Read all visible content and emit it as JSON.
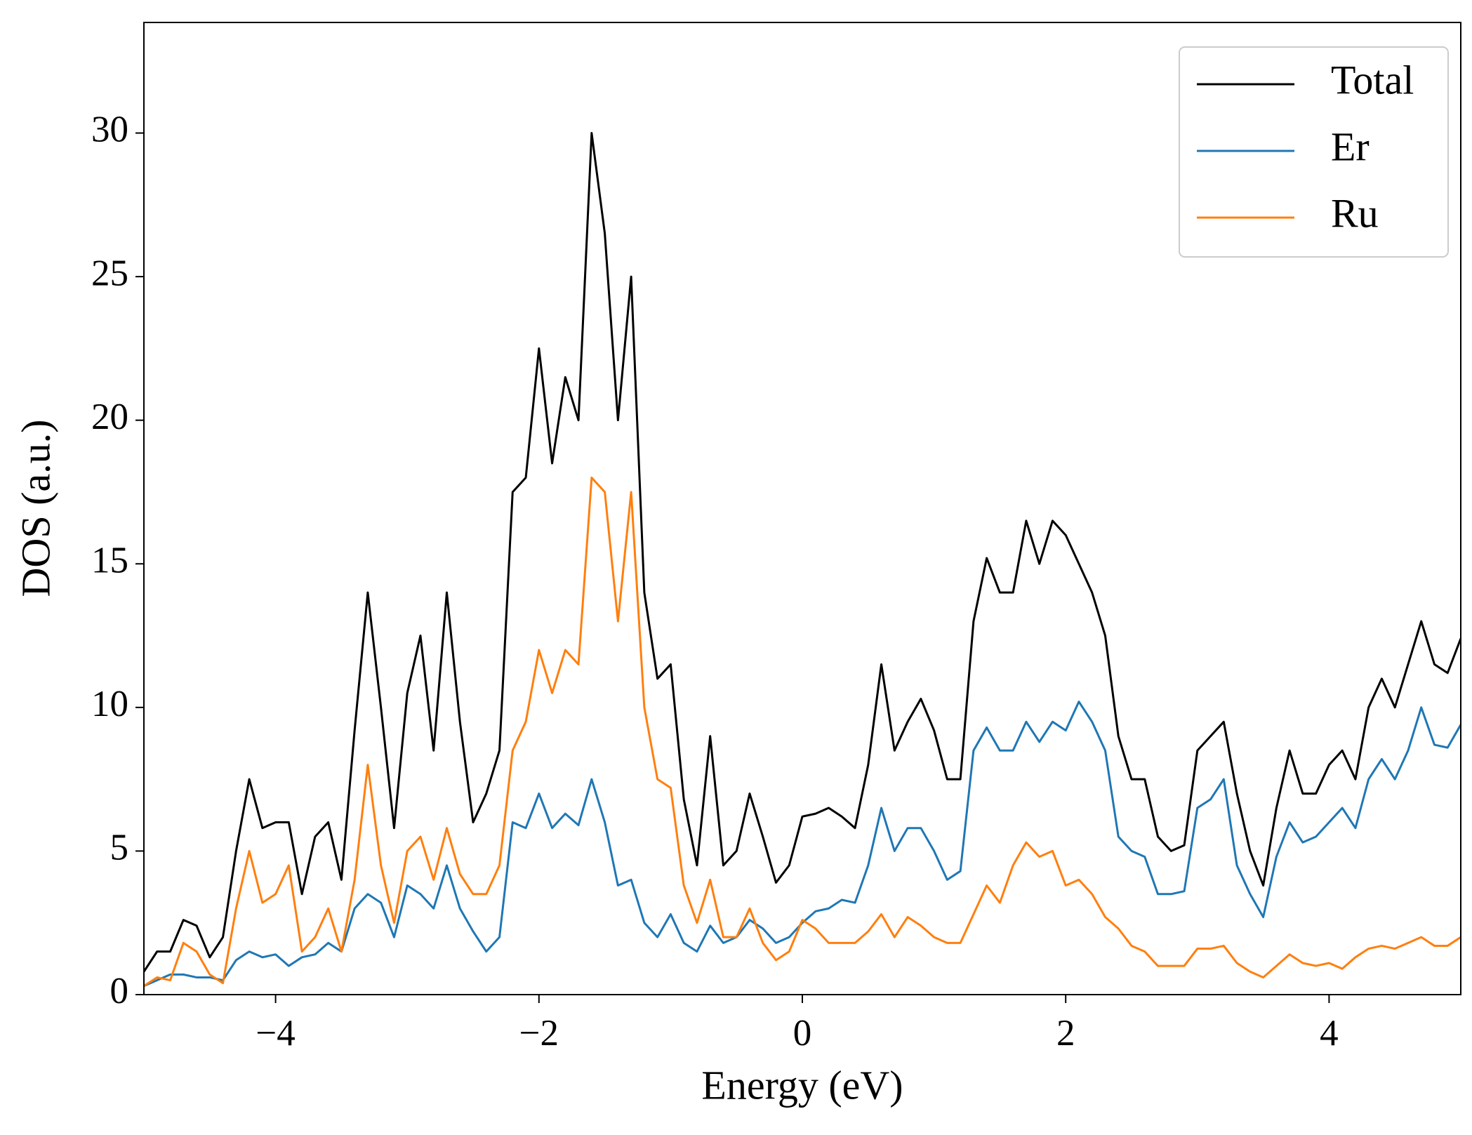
{
  "chart_data": {
    "type": "line",
    "xlabel": "Energy (eV)",
    "ylabel": "DOS (a.u.)",
    "xlim": [
      -5,
      5
    ],
    "ylim": [
      0,
      33.85
    ],
    "xticks": [
      {
        "value": -4,
        "label": "−4"
      },
      {
        "value": -2,
        "label": "−2"
      },
      0,
      2,
      4
    ],
    "yticks": [
      0,
      5,
      10,
      15,
      20,
      25,
      30
    ],
    "legend": "upper right",
    "grid": false,
    "x": [
      -5.0,
      -4.9,
      -4.8,
      -4.7,
      -4.6,
      -4.5,
      -4.4,
      -4.3,
      -4.2,
      -4.1,
      -4.0,
      -3.9,
      -3.8,
      -3.7,
      -3.6,
      -3.5,
      -3.4,
      -3.3,
      -3.2,
      -3.1,
      -3.0,
      -2.9,
      -2.8,
      -2.7,
      -2.6,
      -2.5,
      -2.4,
      -2.3,
      -2.2,
      -2.1,
      -2.0,
      -1.9,
      -1.8,
      -1.7,
      -1.6,
      -1.5,
      -1.4,
      -1.3,
      -1.2,
      -1.1,
      -1.0,
      -0.9,
      -0.8,
      -0.7,
      -0.6,
      -0.5,
      -0.4,
      -0.3,
      -0.2,
      -0.1,
      0.0,
      0.1,
      0.2,
      0.3,
      0.4,
      0.5,
      0.6,
      0.7,
      0.8,
      0.9,
      1.0,
      1.1,
      1.2,
      1.3,
      1.4,
      1.5,
      1.6,
      1.7,
      1.8,
      1.9,
      2.0,
      2.1,
      2.2,
      2.3,
      2.4,
      2.5,
      2.6,
      2.7,
      2.8,
      2.9,
      3.0,
      3.1,
      3.2,
      3.3,
      3.4,
      3.5,
      3.6,
      3.7,
      3.8,
      3.9,
      4.0,
      4.1,
      4.2,
      4.3,
      4.4,
      4.5,
      4.6,
      4.7,
      4.8,
      4.9,
      5.0
    ],
    "series": [
      {
        "name": "Total",
        "color": "#000000",
        "values": [
          0.8,
          1.5,
          1.5,
          2.6,
          2.4,
          1.3,
          2.0,
          5.0,
          7.5,
          5.8,
          6.0,
          6.0,
          3.5,
          5.5,
          6.0,
          4.0,
          9.2,
          14.0,
          10.0,
          5.8,
          10.5,
          12.5,
          8.5,
          14.0,
          9.5,
          6.0,
          7.0,
          8.5,
          17.5,
          18.0,
          22.5,
          18.5,
          21.5,
          20.0,
          30.0,
          26.5,
          20.0,
          25.0,
          14.0,
          11.0,
          11.5,
          6.8,
          4.5,
          9.0,
          4.5,
          5.0,
          7.0,
          5.5,
          3.9,
          4.5,
          6.2,
          6.3,
          6.5,
          6.2,
          5.8,
          8.0,
          11.5,
          8.5,
          9.5,
          10.3,
          9.2,
          7.5,
          7.5,
          13.0,
          15.2,
          14.0,
          14.0,
          16.5,
          15.0,
          16.5,
          16.0,
          15.0,
          14.0,
          12.5,
          9.0,
          7.5,
          7.5,
          5.5,
          5.0,
          5.2,
          8.5,
          9.0,
          9.5,
          7.0,
          5.0,
          3.8,
          6.5,
          8.5,
          7.0,
          7.0,
          8.0,
          8.5,
          7.5,
          10.0,
          11.0,
          10.0,
          11.5,
          13.0,
          11.5,
          11.2,
          12.4
        ]
      },
      {
        "name": "Er",
        "color": "#1f77b4",
        "values": [
          0.3,
          0.5,
          0.7,
          0.7,
          0.6,
          0.6,
          0.5,
          1.2,
          1.5,
          1.3,
          1.4,
          1.0,
          1.3,
          1.4,
          1.8,
          1.5,
          3.0,
          3.5,
          3.2,
          2.0,
          3.8,
          3.5,
          3.0,
          4.5,
          3.0,
          2.2,
          1.5,
          2.0,
          6.0,
          5.8,
          7.0,
          5.8,
          6.3,
          5.9,
          7.5,
          6.0,
          3.8,
          4.0,
          2.5,
          2.0,
          2.8,
          1.8,
          1.5,
          2.4,
          1.8,
          2.0,
          2.6,
          2.3,
          1.8,
          2.0,
          2.5,
          2.9,
          3.0,
          3.3,
          3.2,
          4.5,
          6.5,
          5.0,
          5.8,
          5.8,
          5.0,
          4.0,
          4.3,
          8.5,
          9.3,
          8.5,
          8.5,
          9.5,
          8.8,
          9.5,
          9.2,
          10.2,
          9.5,
          8.5,
          5.5,
          5.0,
          4.8,
          3.5,
          3.5,
          3.6,
          6.5,
          6.8,
          7.5,
          4.5,
          3.5,
          2.7,
          4.8,
          6.0,
          5.3,
          5.5,
          6.0,
          6.5,
          5.8,
          7.5,
          8.2,
          7.5,
          8.5,
          10.0,
          8.7,
          8.6,
          9.4
        ]
      },
      {
        "name": "Ru",
        "color": "#ff7f0e",
        "values": [
          0.3,
          0.6,
          0.5,
          1.8,
          1.5,
          0.7,
          0.4,
          3.0,
          5.0,
          3.2,
          3.5,
          4.5,
          1.5,
          2.0,
          3.0,
          1.5,
          4.0,
          8.0,
          4.5,
          2.5,
          5.0,
          5.5,
          4.0,
          5.8,
          4.2,
          3.5,
          3.5,
          4.5,
          8.5,
          9.5,
          12.0,
          10.5,
          12.0,
          11.5,
          18.0,
          17.5,
          13.0,
          17.5,
          10.0,
          7.5,
          7.2,
          3.8,
          2.5,
          4.0,
          2.0,
          2.0,
          3.0,
          1.8,
          1.2,
          1.5,
          2.6,
          2.3,
          1.8,
          1.8,
          1.8,
          2.2,
          2.8,
          2.0,
          2.7,
          2.4,
          2.0,
          1.8,
          1.8,
          2.8,
          3.8,
          3.2,
          4.5,
          5.3,
          4.8,
          5.0,
          3.8,
          4.0,
          3.5,
          2.7,
          2.3,
          1.7,
          1.5,
          1.0,
          1.0,
          1.0,
          1.6,
          1.6,
          1.7,
          1.1,
          0.8,
          0.6,
          1.0,
          1.4,
          1.1,
          1.0,
          1.1,
          0.9,
          1.3,
          1.6,
          1.7,
          1.6,
          1.8,
          2.0,
          1.7,
          1.7,
          2.0
        ]
      }
    ]
  }
}
